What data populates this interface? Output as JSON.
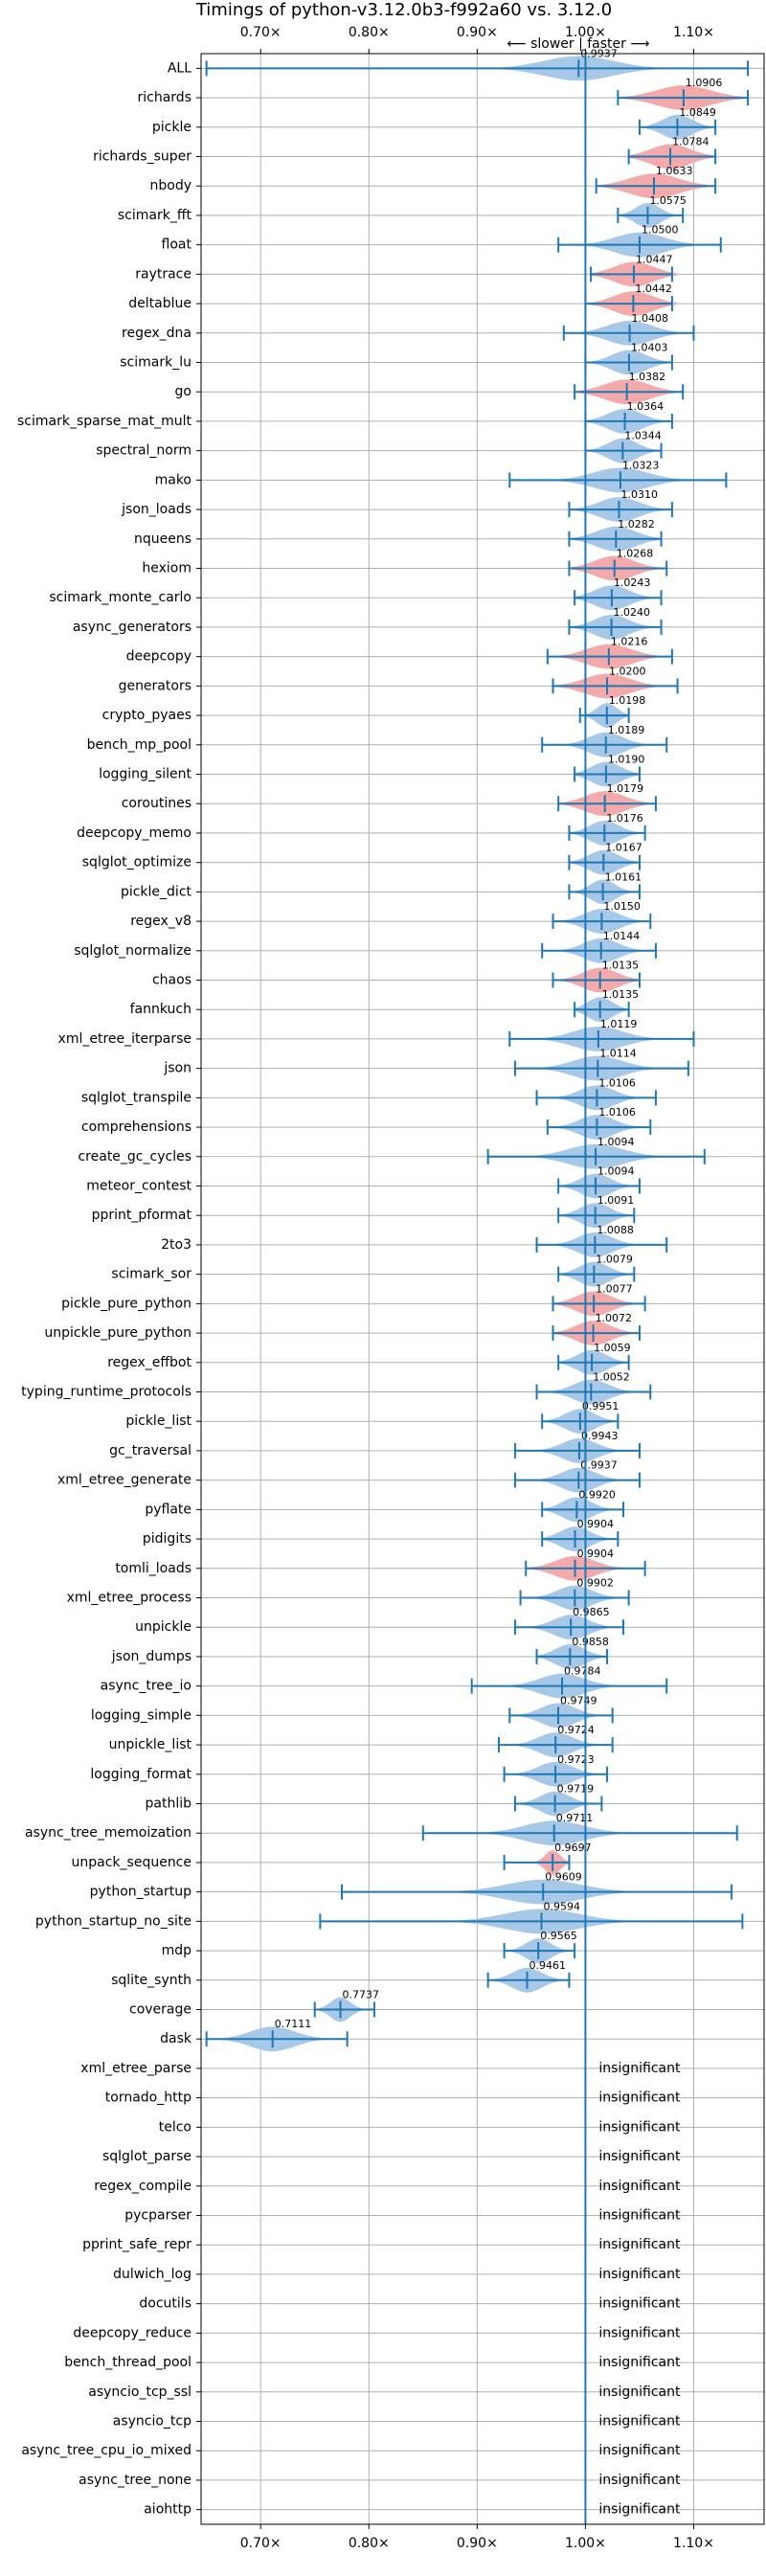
{
  "chart_data": {
    "type": "violin",
    "title": "Timings of python-v3.12.0b3-f992a60 vs. 3.12.0",
    "subtitle": "⟵ slower  |  faster ⟶",
    "xlim": [
      0.645,
      1.165
    ],
    "x_ticks": [
      0.7,
      0.8,
      0.9,
      1.0,
      1.1
    ],
    "x_tick_labels": [
      "0.70×",
      "0.80×",
      "0.90×",
      "1.00×",
      "1.10×"
    ],
    "reference_line": 1.0,
    "grid": true,
    "colors": {
      "normal": "#a8c8e8",
      "highlight": "#f4aaaa",
      "line": "#1f77b4"
    },
    "insignificant_label": "insignificant",
    "benchmarks": [
      {
        "name": "ALL",
        "value": 0.9937,
        "label": "0.9937",
        "min": 0.65,
        "max": 1.15,
        "color": "normal",
        "spread": 0.07
      },
      {
        "name": "richards",
        "value": 1.0906,
        "label": "1.0906",
        "min": 1.03,
        "max": 1.15,
        "color": "highlight",
        "spread": 0.055
      },
      {
        "name": "pickle",
        "value": 1.0849,
        "label": "1.0849",
        "min": 1.05,
        "max": 1.12,
        "color": "normal",
        "spread": 0.03
      },
      {
        "name": "richards_super",
        "value": 1.0784,
        "label": "1.0784",
        "min": 1.04,
        "max": 1.12,
        "color": "highlight",
        "spread": 0.04
      },
      {
        "name": "nbody",
        "value": 1.0633,
        "label": "1.0633",
        "min": 1.01,
        "max": 1.12,
        "color": "highlight",
        "spread": 0.05
      },
      {
        "name": "scimark_fft",
        "value": 1.0575,
        "label": "1.0575",
        "min": 1.03,
        "max": 1.09,
        "color": "normal",
        "spread": 0.025
      },
      {
        "name": "float",
        "value": 1.05,
        "label": "1.0500",
        "min": 0.975,
        "max": 1.125,
        "color": "normal",
        "spread": 0.05
      },
      {
        "name": "raytrace",
        "value": 1.0447,
        "label": "1.0447",
        "min": 1.005,
        "max": 1.08,
        "color": "highlight",
        "spread": 0.04
      },
      {
        "name": "deltablue",
        "value": 1.0442,
        "label": "1.0442",
        "min": 1.0,
        "max": 1.08,
        "color": "highlight",
        "spread": 0.04
      },
      {
        "name": "regex_dna",
        "value": 1.0408,
        "label": "1.0408",
        "min": 0.98,
        "max": 1.1,
        "color": "normal",
        "spread": 0.045
      },
      {
        "name": "scimark_lu",
        "value": 1.0403,
        "label": "1.0403",
        "min": 1.0,
        "max": 1.08,
        "color": "normal",
        "spread": 0.035
      },
      {
        "name": "go",
        "value": 1.0382,
        "label": "1.0382",
        "min": 0.99,
        "max": 1.09,
        "color": "highlight",
        "spread": 0.045
      },
      {
        "name": "scimark_sparse_mat_mult",
        "value": 1.0364,
        "label": "1.0364",
        "min": 1.0,
        "max": 1.08,
        "color": "normal",
        "spread": 0.035
      },
      {
        "name": "spectral_norm",
        "value": 1.0344,
        "label": "1.0344",
        "min": 1.0,
        "max": 1.07,
        "color": "normal",
        "spread": 0.03
      },
      {
        "name": "mako",
        "value": 1.0323,
        "label": "1.0323",
        "min": 0.93,
        "max": 1.13,
        "color": "normal",
        "spread": 0.055
      },
      {
        "name": "json_loads",
        "value": 1.031,
        "label": "1.0310",
        "min": 0.985,
        "max": 1.08,
        "color": "normal",
        "spread": 0.04
      },
      {
        "name": "nqueens",
        "value": 1.0282,
        "label": "1.0282",
        "min": 0.985,
        "max": 1.07,
        "color": "normal",
        "spread": 0.04
      },
      {
        "name": "hexiom",
        "value": 1.0268,
        "label": "1.0268",
        "min": 0.985,
        "max": 1.075,
        "color": "highlight",
        "spread": 0.04
      },
      {
        "name": "scimark_monte_carlo",
        "value": 1.0243,
        "label": "1.0243",
        "min": 0.99,
        "max": 1.07,
        "color": "normal",
        "spread": 0.035
      },
      {
        "name": "async_generators",
        "value": 1.024,
        "label": "1.0240",
        "min": 0.985,
        "max": 1.07,
        "color": "normal",
        "spread": 0.035
      },
      {
        "name": "deepcopy",
        "value": 1.0216,
        "label": "1.0216",
        "min": 0.965,
        "max": 1.08,
        "color": "highlight",
        "spread": 0.045
      },
      {
        "name": "generators",
        "value": 1.02,
        "label": "1.0200",
        "min": 0.97,
        "max": 1.085,
        "color": "highlight",
        "spread": 0.045
      },
      {
        "name": "crypto_pyaes",
        "value": 1.0198,
        "label": "1.0198",
        "min": 0.995,
        "max": 1.04,
        "color": "normal",
        "spread": 0.02
      },
      {
        "name": "bench_mp_pool",
        "value": 1.0189,
        "label": "1.0189",
        "min": 0.96,
        "max": 1.075,
        "color": "normal",
        "spread": 0.035
      },
      {
        "name": "logging_silent",
        "value": 1.019,
        "label": "1.0190",
        "min": 0.99,
        "max": 1.05,
        "color": "normal",
        "spread": 0.03
      },
      {
        "name": "coroutines",
        "value": 1.0179,
        "label": "1.0179",
        "min": 0.975,
        "max": 1.065,
        "color": "highlight",
        "spread": 0.04
      },
      {
        "name": "deepcopy_memo",
        "value": 1.0176,
        "label": "1.0176",
        "min": 0.985,
        "max": 1.055,
        "color": "normal",
        "spread": 0.03
      },
      {
        "name": "sqlglot_optimize",
        "value": 1.0167,
        "label": "1.0167",
        "min": 0.985,
        "max": 1.05,
        "color": "normal",
        "spread": 0.03
      },
      {
        "name": "pickle_dict",
        "value": 1.0161,
        "label": "1.0161",
        "min": 0.985,
        "max": 1.05,
        "color": "normal",
        "spread": 0.025
      },
      {
        "name": "regex_v8",
        "value": 1.015,
        "label": "1.0150",
        "min": 0.97,
        "max": 1.06,
        "color": "normal",
        "spread": 0.035
      },
      {
        "name": "sqlglot_normalize",
        "value": 1.0144,
        "label": "1.0144",
        "min": 0.96,
        "max": 1.065,
        "color": "normal",
        "spread": 0.035
      },
      {
        "name": "chaos",
        "value": 1.0135,
        "label": "1.0135",
        "min": 0.97,
        "max": 1.05,
        "color": "highlight",
        "spread": 0.035
      },
      {
        "name": "fannkuch",
        "value": 1.0135,
        "label": "1.0135",
        "min": 0.99,
        "max": 1.04,
        "color": "normal",
        "spread": 0.025
      },
      {
        "name": "xml_etree_iterparse",
        "value": 1.0119,
        "label": "1.0119",
        "min": 0.93,
        "max": 1.1,
        "color": "normal",
        "spread": 0.05
      },
      {
        "name": "json",
        "value": 1.0114,
        "label": "1.0114",
        "min": 0.935,
        "max": 1.095,
        "color": "normal",
        "spread": 0.05
      },
      {
        "name": "sqlglot_transpile",
        "value": 1.0106,
        "label": "1.0106",
        "min": 0.955,
        "max": 1.065,
        "color": "normal",
        "spread": 0.035
      },
      {
        "name": "comprehensions",
        "value": 1.0106,
        "label": "1.0106",
        "min": 0.965,
        "max": 1.06,
        "color": "normal",
        "spread": 0.035
      },
      {
        "name": "create_gc_cycles",
        "value": 1.0094,
        "label": "1.0094",
        "min": 0.91,
        "max": 1.11,
        "color": "normal",
        "spread": 0.055
      },
      {
        "name": "meteor_contest",
        "value": 1.0094,
        "label": "1.0094",
        "min": 0.975,
        "max": 1.05,
        "color": "normal",
        "spread": 0.03
      },
      {
        "name": "pprint_pformat",
        "value": 1.0091,
        "label": "1.0091",
        "min": 0.975,
        "max": 1.045,
        "color": "normal",
        "spread": 0.03
      },
      {
        "name": "2to3",
        "value": 1.0088,
        "label": "1.0088",
        "min": 0.955,
        "max": 1.075,
        "color": "normal",
        "spread": 0.035
      },
      {
        "name": "scimark_sor",
        "value": 1.0079,
        "label": "1.0079",
        "min": 0.975,
        "max": 1.045,
        "color": "normal",
        "spread": 0.03
      },
      {
        "name": "pickle_pure_python",
        "value": 1.0077,
        "label": "1.0077",
        "min": 0.97,
        "max": 1.055,
        "color": "highlight",
        "spread": 0.035
      },
      {
        "name": "unpickle_pure_python",
        "value": 1.0072,
        "label": "1.0072",
        "min": 0.97,
        "max": 1.05,
        "color": "highlight",
        "spread": 0.035
      },
      {
        "name": "regex_effbot",
        "value": 1.0059,
        "label": "1.0059",
        "min": 0.975,
        "max": 1.04,
        "color": "normal",
        "spread": 0.03
      },
      {
        "name": "typing_runtime_protocols",
        "value": 1.0052,
        "label": "1.0052",
        "min": 0.955,
        "max": 1.06,
        "color": "normal",
        "spread": 0.035
      },
      {
        "name": "pickle_list",
        "value": 0.9951,
        "label": "0.9951",
        "min": 0.96,
        "max": 1.03,
        "color": "normal",
        "spread": 0.03
      },
      {
        "name": "gc_traversal",
        "value": 0.9943,
        "label": "0.9943",
        "min": 0.935,
        "max": 1.05,
        "color": "normal",
        "spread": 0.035
      },
      {
        "name": "xml_etree_generate",
        "value": 0.9937,
        "label": "0.9937",
        "min": 0.935,
        "max": 1.05,
        "color": "normal",
        "spread": 0.035
      },
      {
        "name": "pyflate",
        "value": 0.992,
        "label": "0.9920",
        "min": 0.96,
        "max": 1.035,
        "color": "normal",
        "spread": 0.03
      },
      {
        "name": "pidigits",
        "value": 0.9904,
        "label": "0.9904",
        "min": 0.96,
        "max": 1.03,
        "color": "normal",
        "spread": 0.03
      },
      {
        "name": "tomli_loads",
        "value": 0.9904,
        "label": "0.9904",
        "min": 0.945,
        "max": 1.055,
        "color": "highlight",
        "spread": 0.04
      },
      {
        "name": "xml_etree_process",
        "value": 0.9902,
        "label": "0.9902",
        "min": 0.94,
        "max": 1.04,
        "color": "normal",
        "spread": 0.035
      },
      {
        "name": "unpickle",
        "value": 0.9865,
        "label": "0.9865",
        "min": 0.935,
        "max": 1.035,
        "color": "normal",
        "spread": 0.035
      },
      {
        "name": "json_dumps",
        "value": 0.9858,
        "label": "0.9858",
        "min": 0.955,
        "max": 1.02,
        "color": "normal",
        "spread": 0.03
      },
      {
        "name": "async_tree_io",
        "value": 0.9784,
        "label": "0.9784",
        "min": 0.895,
        "max": 1.075,
        "color": "normal",
        "spread": 0.045
      },
      {
        "name": "logging_simple",
        "value": 0.9749,
        "label": "0.9749",
        "min": 0.93,
        "max": 1.025,
        "color": "normal",
        "spread": 0.035
      },
      {
        "name": "unpickle_list",
        "value": 0.9724,
        "label": "0.9724",
        "min": 0.92,
        "max": 1.025,
        "color": "normal",
        "spread": 0.035
      },
      {
        "name": "logging_format",
        "value": 0.9723,
        "label": "0.9723",
        "min": 0.925,
        "max": 1.02,
        "color": "normal",
        "spread": 0.035
      },
      {
        "name": "pathlib",
        "value": 0.9719,
        "label": "0.9719",
        "min": 0.935,
        "max": 1.015,
        "color": "normal",
        "spread": 0.03
      },
      {
        "name": "async_tree_memoization",
        "value": 0.9711,
        "label": "0.9711",
        "min": 0.85,
        "max": 1.14,
        "color": "normal",
        "spread": 0.06
      },
      {
        "name": "unpack_sequence",
        "value": 0.9697,
        "label": "0.9697",
        "min": 0.925,
        "max": 0.985,
        "color": "highlight",
        "spread": 0.015
      },
      {
        "name": "python_startup",
        "value": 0.9609,
        "label": "0.9609",
        "min": 0.775,
        "max": 1.135,
        "color": "normal",
        "spread": 0.075
      },
      {
        "name": "python_startup_no_site",
        "value": 0.9594,
        "label": "0.9594",
        "min": 0.755,
        "max": 1.145,
        "color": "normal",
        "spread": 0.075
      },
      {
        "name": "mdp",
        "value": 0.9565,
        "label": "0.9565",
        "min": 0.925,
        "max": 0.99,
        "color": "normal",
        "spread": 0.025
      },
      {
        "name": "sqlite_synth",
        "value": 0.9461,
        "label": "0.9461",
        "min": 0.91,
        "max": 0.985,
        "color": "normal",
        "spread": 0.03
      },
      {
        "name": "coverage",
        "value": 0.7737,
        "label": "0.7737",
        "min": 0.75,
        "max": 0.805,
        "color": "normal",
        "spread": 0.02
      },
      {
        "name": "dask",
        "value": 0.7111,
        "label": "0.7111",
        "min": 0.65,
        "max": 0.78,
        "color": "normal",
        "spread": 0.045
      },
      {
        "name": "xml_etree_parse",
        "insignificant": true
      },
      {
        "name": "tornado_http",
        "insignificant": true
      },
      {
        "name": "telco",
        "insignificant": true
      },
      {
        "name": "sqlglot_parse",
        "insignificant": true
      },
      {
        "name": "regex_compile",
        "insignificant": true
      },
      {
        "name": "pycparser",
        "insignificant": true
      },
      {
        "name": "pprint_safe_repr",
        "insignificant": true
      },
      {
        "name": "dulwich_log",
        "insignificant": true
      },
      {
        "name": "docutils",
        "insignificant": true
      },
      {
        "name": "deepcopy_reduce",
        "insignificant": true
      },
      {
        "name": "bench_thread_pool",
        "insignificant": true
      },
      {
        "name": "asyncio_tcp_ssl",
        "insignificant": true
      },
      {
        "name": "asyncio_tcp",
        "insignificant": true
      },
      {
        "name": "async_tree_cpu_io_mixed",
        "insignificant": true
      },
      {
        "name": "async_tree_none",
        "insignificant": true
      },
      {
        "name": "aiohttp",
        "insignificant": true
      }
    ]
  }
}
